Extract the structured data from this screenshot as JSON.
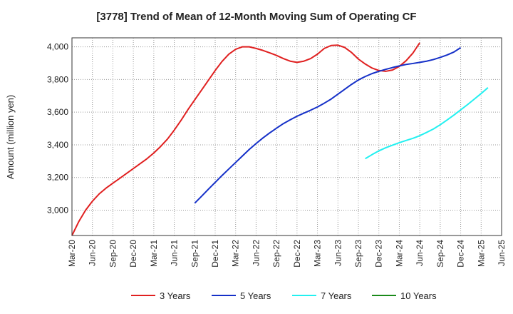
{
  "chart_data": {
    "type": "line",
    "title": "[3778]  Trend of Mean of 12-Month Moving Sum of Operating CF",
    "xlabel": "",
    "ylabel": "Amount (million yen)",
    "x_tick_labels": [
      "Mar-20",
      "Jun-20",
      "Sep-20",
      "Dec-20",
      "Mar-21",
      "Jun-21",
      "Sep-21",
      "Dec-21",
      "Mar-22",
      "Jun-22",
      "Sep-22",
      "Dec-22",
      "Mar-23",
      "Jun-23",
      "Sep-23",
      "Dec-23",
      "Mar-24",
      "Jun-24",
      "Sep-24",
      "Dec-24",
      "Mar-25",
      "Jun-25"
    ],
    "y_ticks": [
      3000,
      3200,
      3400,
      3600,
      3800,
      4000
    ],
    "y_tick_labels": [
      "3,000",
      "3,200",
      "3,400",
      "3,600",
      "3,800",
      "4,000"
    ],
    "ylim": [
      2845,
      4055
    ],
    "grid": true,
    "legend_position": "bottom",
    "series": [
      {
        "name": "3 Years",
        "color": "#e02020",
        "start_index": 0,
        "values": [
          2845,
          2930,
          3000,
          3055,
          3100,
          3135,
          3165,
          3195,
          3225,
          3255,
          3285,
          3315,
          3350,
          3390,
          3435,
          3490,
          3550,
          3615,
          3675,
          3735,
          3795,
          3855,
          3910,
          3955,
          3985,
          4000,
          4000,
          3990,
          3978,
          3963,
          3947,
          3928,
          3912,
          3905,
          3912,
          3928,
          3955,
          3990,
          4008,
          4010,
          3996,
          3965,
          3925,
          3895,
          3870,
          3855,
          3850,
          3858,
          3880,
          3915,
          3962,
          4025
        ]
      },
      {
        "name": "5 Years",
        "color": "#1530c8",
        "start_index": 18,
        "values": [
          3043,
          3085,
          3128,
          3170,
          3212,
          3252,
          3292,
          3332,
          3372,
          3408,
          3442,
          3473,
          3502,
          3530,
          3553,
          3575,
          3594,
          3612,
          3632,
          3655,
          3680,
          3710,
          3740,
          3770,
          3797,
          3818,
          3836,
          3850,
          3862,
          3873,
          3883,
          3892,
          3898,
          3905,
          3912,
          3922,
          3935,
          3950,
          3968,
          3995
        ]
      },
      {
        "name": "7 Years",
        "color": "#22f0f0",
        "start_index": 43,
        "values": [
          3315,
          3340,
          3363,
          3382,
          3398,
          3413,
          3427,
          3440,
          3456,
          3476,
          3497,
          3523,
          3552,
          3582,
          3614,
          3646,
          3680,
          3714,
          3750
        ]
      },
      {
        "name": "10 Years",
        "color": "#1a8a1a",
        "start_index": 0,
        "values": []
      }
    ]
  }
}
